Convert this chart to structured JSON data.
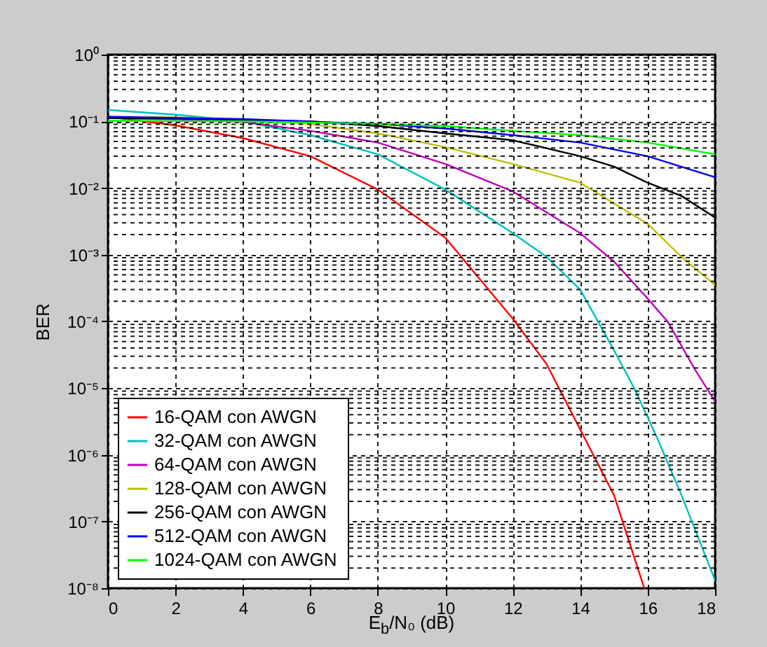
{
  "chart_data": {
    "type": "line",
    "ylabel": "BER",
    "xlabel": "E$_{b}$/N₀ (dB)",
    "xlim": [
      0,
      18
    ],
    "xticks": [
      0,
      2,
      4,
      6,
      8,
      10,
      12,
      14,
      16,
      18
    ],
    "ylim": [
      1e-08,
      1
    ],
    "yticks": [
      {
        "value": 1,
        "label": "10⁰"
      },
      {
        "value": 0.1,
        "label": "10⁻¹"
      },
      {
        "value": 0.01,
        "label": "10⁻²"
      },
      {
        "value": 0.001,
        "label": "10⁻³"
      },
      {
        "value": 0.0001,
        "label": "10⁻⁴"
      },
      {
        "value": 1e-05,
        "label": "10⁻⁵"
      },
      {
        "value": 1e-06,
        "label": "10⁻⁶"
      },
      {
        "value": 1e-07,
        "label": "10⁻⁷"
      },
      {
        "value": 1e-08,
        "label": "10⁻⁸"
      }
    ],
    "log": "y",
    "grid": true,
    "legend": "bottom left",
    "line_style": "solid",
    "series": [
      {
        "name": "16-QAM con AWGN",
        "color": "#ff0000",
        "x": [
          0,
          2,
          4,
          6,
          8,
          10,
          12,
          13,
          14,
          15,
          15.9
        ],
        "values": [
          0.117,
          0.087,
          0.056,
          0.03,
          0.0095,
          0.0018,
          0.00011,
          2.3e-05,
          2.4e-06,
          2.5e-07,
          1e-08
        ]
      },
      {
        "name": "32-QAM con AWGN",
        "color": "#00bfbf",
        "x": [
          0,
          2,
          4,
          6,
          8,
          10,
          12,
          13,
          14,
          15,
          15.6,
          16.3,
          17,
          18
        ],
        "values": [
          0.148,
          0.126,
          0.1,
          0.062,
          0.032,
          0.0095,
          0.0021,
          0.00093,
          0.0003,
          3.7e-05,
          1e-05,
          1.7e-06,
          2.5e-07,
          1.3e-08
        ]
      },
      {
        "name": "64-QAM con AWGN",
        "color": "#bf00bf",
        "x": [
          0,
          2,
          4,
          6,
          8,
          10,
          12,
          14,
          15,
          16,
          16.6,
          17.4,
          18
        ],
        "values": [
          0.112,
          0.107,
          0.098,
          0.072,
          0.048,
          0.023,
          0.0089,
          0.0021,
          0.00079,
          0.00022,
          9.8e-05,
          1.9e-05,
          6.3e-06
        ]
      },
      {
        "name": "128-QAM con AWGN",
        "color": "#bfbf00",
        "x": [
          0,
          2,
          4,
          6,
          8,
          10,
          12,
          14,
          16,
          17,
          18
        ],
        "values": [
          0.117,
          0.115,
          0.107,
          0.091,
          0.066,
          0.041,
          0.023,
          0.012,
          0.0029,
          0.00093,
          0.00035
        ]
      },
      {
        "name": "256-QAM con AWGN",
        "color": "#000000",
        "x": [
          0,
          2,
          4,
          6,
          8,
          10,
          12,
          14,
          15,
          16,
          17,
          18
        ],
        "values": [
          0.112,
          0.11,
          0.105,
          0.1,
          0.085,
          0.066,
          0.052,
          0.03,
          0.021,
          0.012,
          0.0076,
          0.0036
        ]
      },
      {
        "name": "512-QAM con AWGN",
        "color": "#0000ff",
        "x": [
          0,
          4,
          8,
          10,
          12,
          14,
          16,
          18
        ],
        "values": [
          0.117,
          0.108,
          0.091,
          0.078,
          0.062,
          0.048,
          0.03,
          0.0145
        ]
      },
      {
        "name": "1024-QAM con AWGN",
        "color": "#00ff00",
        "x": [
          0,
          4,
          8,
          10,
          12,
          14,
          16,
          18
        ],
        "values": [
          0.102,
          0.1,
          0.091,
          0.085,
          0.072,
          0.062,
          0.048,
          0.032
        ]
      }
    ]
  }
}
